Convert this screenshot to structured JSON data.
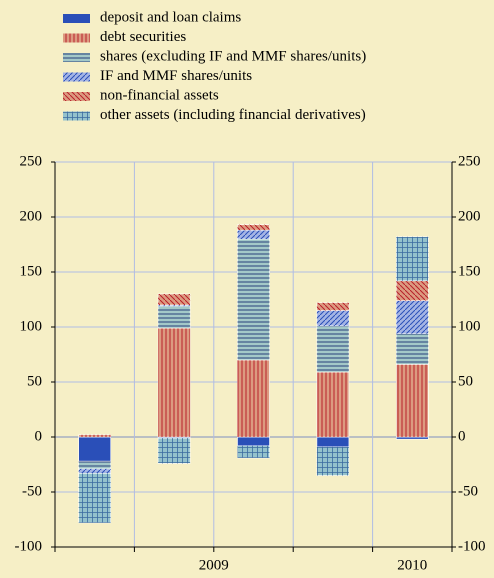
{
  "chart_data": {
    "type": "stacked_bar",
    "x_groups": [
      {
        "label": "2009",
        "count": 4
      },
      {
        "label": "2010",
        "count": 1
      }
    ],
    "categories": [
      null,
      null,
      null,
      null,
      null
    ],
    "series": [
      {
        "name": "deposit and loan claims",
        "color": "#2a4fb8",
        "pattern": "solid",
        "values": [
          -22,
          -1,
          -8,
          -9,
          -2
        ]
      },
      {
        "name": "debt securities",
        "color": "#dc9a80",
        "pattern": "vertical",
        "values": [
          2,
          99,
          70,
          59,
          66
        ]
      },
      {
        "name": "shares (excluding IF and MMF shares/units)",
        "color": "#a3c8c8",
        "pattern": "horizontal",
        "values": [
          -7,
          20,
          110,
          42,
          28
        ]
      },
      {
        "name": "IF and MMF shares/units",
        "color": "#a4b4e4",
        "pattern": "diagonal",
        "values": [
          -4,
          1,
          8,
          14,
          30
        ]
      },
      {
        "name": "non-financial assets",
        "color": "#dc9a80",
        "pattern": "antidiagonal",
        "values": [
          0,
          10,
          5,
          7,
          18
        ]
      },
      {
        "name": "other assets (including financial derivatives)",
        "color": "#94c2cc",
        "pattern": "grid",
        "values": [
          -45,
          -23,
          -11,
          -26,
          40
        ]
      }
    ],
    "ylim": [
      -100,
      250
    ],
    "yticks": [
      -100,
      -50,
      0,
      50,
      100,
      150,
      200,
      250
    ],
    "grid": true
  }
}
